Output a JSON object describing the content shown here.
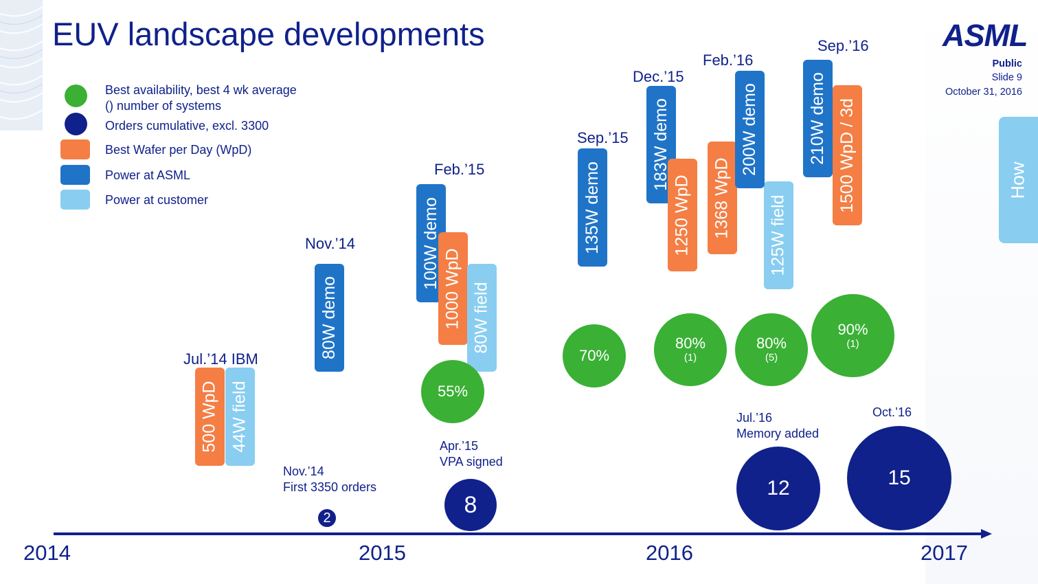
{
  "slide": {
    "title": "EUV landscape developments",
    "logo": "ASML",
    "classification": "Public",
    "slide_number": "Slide 9",
    "date": "October 31, 2016",
    "side_tab": "How"
  },
  "colors": {
    "title": "#10218b",
    "green": "#3ab035",
    "navy": "#10218b",
    "orange": "#f47e44",
    "dark_blue": "#1f74c8",
    "light_blue": "#89cdf1"
  },
  "legend": [
    {
      "label": "Best availability, best 4 wk average",
      "sub": "() number of systems",
      "color": "#3ab035",
      "shape": "circle"
    },
    {
      "label": "Orders cumulative, excl. 3300",
      "color": "#10218b",
      "shape": "circle"
    },
    {
      "label": "Best Wafer per Day (WpD)",
      "color": "#f47e44",
      "shape": "rect"
    },
    {
      "label": "Power at ASML",
      "color": "#1f74c8",
      "shape": "rect"
    },
    {
      "label": "Power at customer",
      "color": "#89cdf1",
      "shape": "rect"
    }
  ],
  "milestones": {
    "jul14": "Jul.’14 IBM",
    "nov14": "Nov.’14",
    "feb15": "Feb.’15",
    "sep15": "Sep.’15",
    "dec15": "Dec.’15",
    "feb16": "Feb.’16",
    "sep16": "Sep.’16"
  },
  "bars": {
    "jul14_wpd": "500 WpD",
    "jul14_field": "44W field",
    "nov14_demo": "80W demo",
    "feb15_demo": "100W demo",
    "feb15_wpd": "1000 WpD",
    "feb15_field": "80W field",
    "sep15_demo": "135W demo",
    "dec15_demo": "183W demo",
    "dec15_wpd": "1250 WpD",
    "feb16_wpd": "1368 WpD",
    "feb16_demo": "200W demo",
    "feb16_field": "125W field",
    "sep16_demo": "210W demo",
    "sep16_wpd": "1500 WpD / 3d"
  },
  "availability": [
    {
      "value": "55%",
      "systems": ""
    },
    {
      "value": "70%",
      "systems": ""
    },
    {
      "value": "80%",
      "systems": "(1)"
    },
    {
      "value": "80%",
      "systems": "(5)"
    },
    {
      "value": "90%",
      "systems": "(1)"
    }
  ],
  "orders": {
    "nov14": {
      "line1": "Nov.’14",
      "line2": "First 3350  orders",
      "count": "2"
    },
    "apr15": {
      "line1": "Apr.’15",
      "line2": "VPA signed",
      "count": "8"
    },
    "jul16": {
      "line1": "Jul.’16",
      "line2": "Memory added",
      "count": "12"
    },
    "oct16": {
      "line1": "Oct.’16",
      "count": "15"
    }
  },
  "timeline": {
    "years": [
      "2014",
      "2015",
      "2016",
      "2017"
    ]
  }
}
